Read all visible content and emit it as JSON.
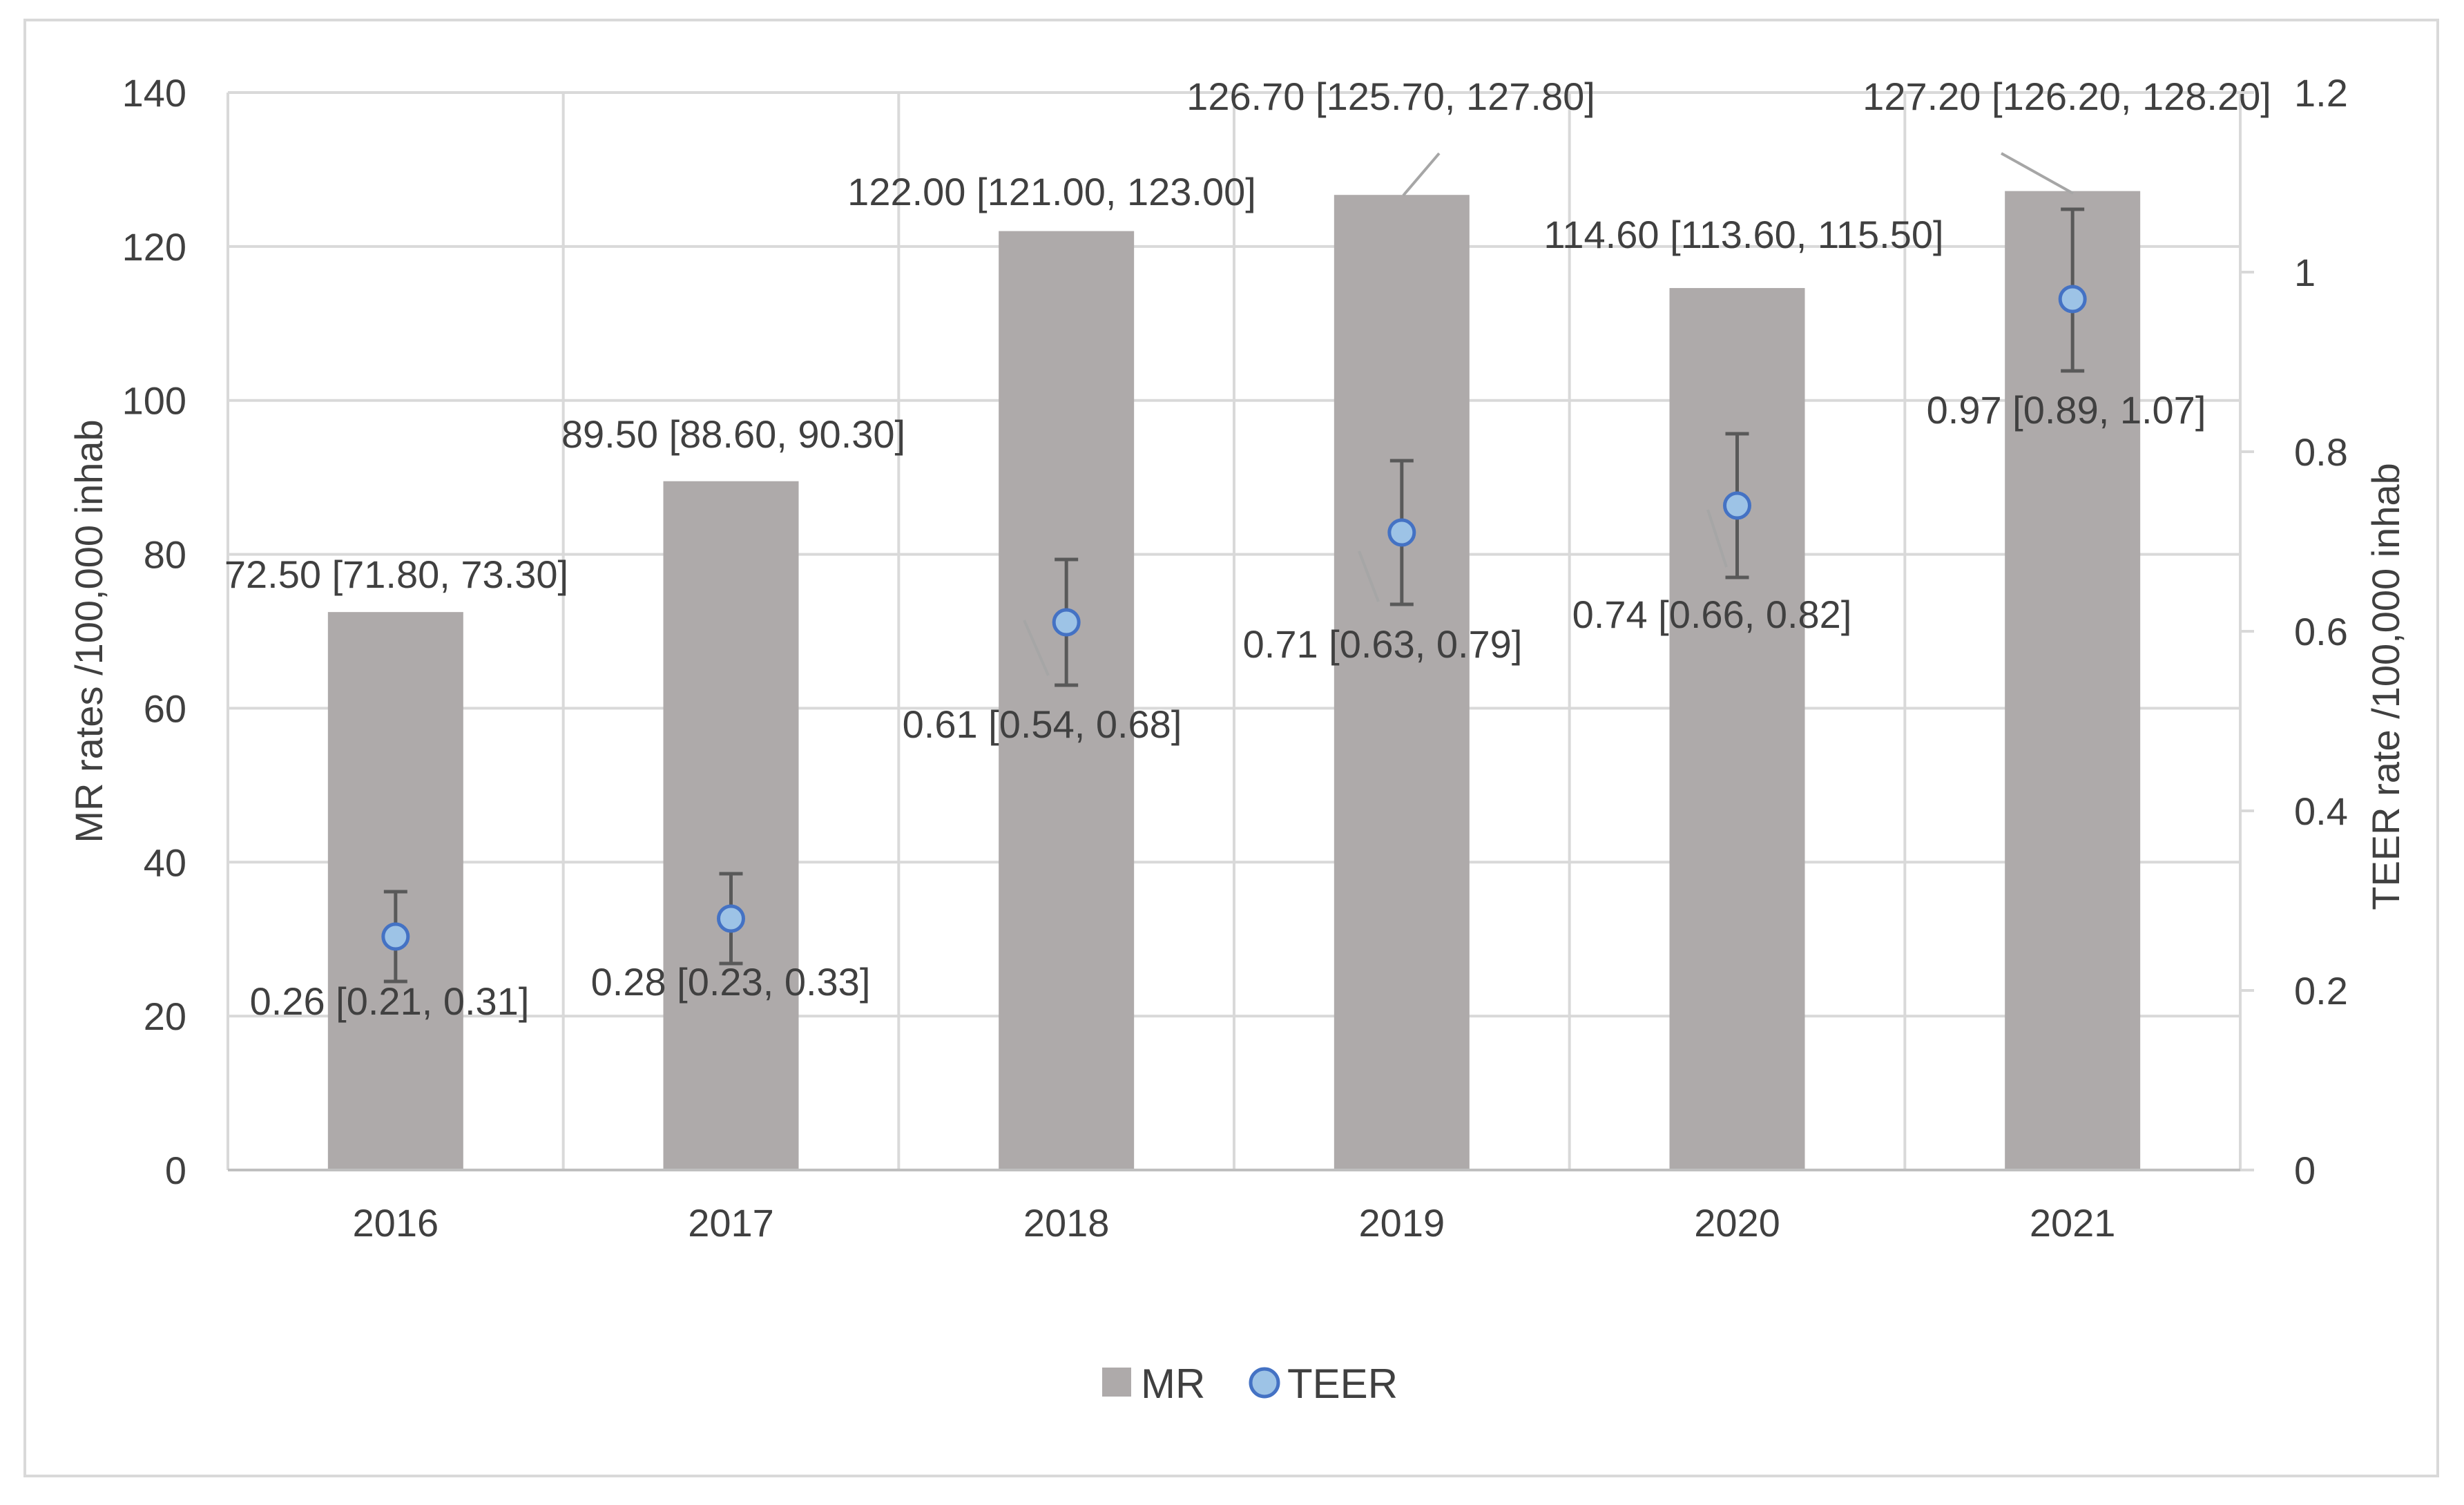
{
  "chart_data": {
    "type": "bar",
    "categories": [
      "2016",
      "2017",
      "2018",
      "2019",
      "2020",
      "2021"
    ],
    "y_left": {
      "label": "MR rates /100,000 inhab",
      "range": [
        0,
        140
      ],
      "ticks": [
        "0",
        "20",
        "40",
        "60",
        "80",
        "100",
        "120",
        "140"
      ]
    },
    "y_right": {
      "label": "TEER rate /100,000 inhab",
      "range": [
        0,
        1.2
      ],
      "ticks": [
        "0",
        "0.2",
        "0.4",
        "0.6",
        "0.8",
        "1",
        "1.2"
      ]
    },
    "series": [
      {
        "name": "MR",
        "type": "bar",
        "axis": "left",
        "color": "#aeaaaa",
        "values": [
          72.5,
          89.5,
          122.0,
          126.7,
          114.6,
          127.2
        ],
        "labels": [
          "72.50 [71.80, 73.30]",
          "89.50 [88.60, 90.30]",
          "122.00 [121.00, 123.00]",
          "126.70 [125.70, 127.80]",
          "114.60 [113.60, 115.50]",
          "127.20 [126.20, 128.20]"
        ]
      },
      {
        "name": "TEER",
        "type": "scatter",
        "axis": "right",
        "color": "#9dc3e6",
        "edge_color": "#4472c4",
        "values": [
          0.26,
          0.28,
          0.61,
          0.71,
          0.74,
          0.97
        ],
        "error_low": [
          0.21,
          0.23,
          0.54,
          0.63,
          0.66,
          0.89
        ],
        "error_high": [
          0.31,
          0.33,
          0.68,
          0.79,
          0.82,
          1.07
        ],
        "labels": [
          "0.26 [0.21, 0.31]",
          "0.28 [0.23, 0.33]",
          "0.61 [0.54, 0.68]",
          "0.71 [0.63, 0.79]",
          "0.74 [0.66, 0.82]",
          "0.97 [0.89, 1.07]"
        ]
      }
    ],
    "grid": true,
    "legend": "bottom-center"
  }
}
